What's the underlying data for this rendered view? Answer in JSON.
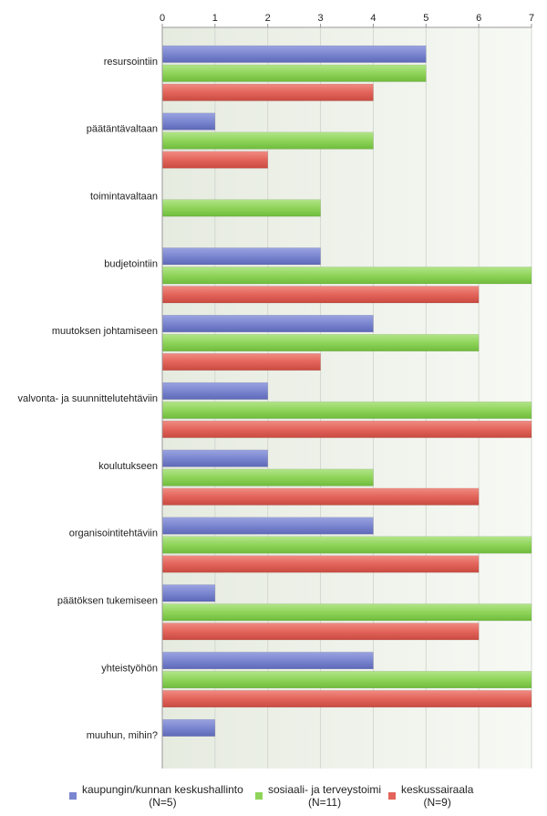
{
  "chart_data": {
    "type": "bar",
    "orientation": "horizontal",
    "title": "",
    "xlabel": "",
    "ylabel": "",
    "xlim": [
      0,
      7
    ],
    "ticks": [
      0,
      1,
      2,
      3,
      4,
      5,
      6,
      7
    ],
    "axis_position": "top",
    "grid": true,
    "legend_position": "bottom",
    "categories": [
      "resursointiin",
      "päätäntävaltaan",
      "toimintavaltaan",
      "budjetointiin",
      "muutoksen johtamiseen",
      "valvonta- ja suunnittelutehtäviin",
      "koulutukseen",
      "organisointitehtäviin",
      "päätöksen tukemiseen",
      "yhteistyöhön",
      "muuhun, mihin?"
    ],
    "series": [
      {
        "name": "kaupungin/kunnan keskushallinto",
        "name_line2": "(N=5)",
        "color": "#7b86d0",
        "values": [
          5,
          1,
          0,
          3,
          4,
          2,
          2,
          4,
          1,
          4,
          1
        ]
      },
      {
        "name": "sosiaali- ja terveystoimi",
        "name_line2": "(N=11)",
        "color": "#8fd45a",
        "values": [
          5,
          4,
          3,
          7,
          6,
          7,
          4,
          7,
          7,
          7,
          0
        ]
      },
      {
        "name": "keskussairaala",
        "name_line2": "(N=9)",
        "color": "#e3645a",
        "values": [
          4,
          2,
          0,
          6,
          3,
          7,
          6,
          6,
          6,
          7,
          0
        ]
      }
    ]
  }
}
